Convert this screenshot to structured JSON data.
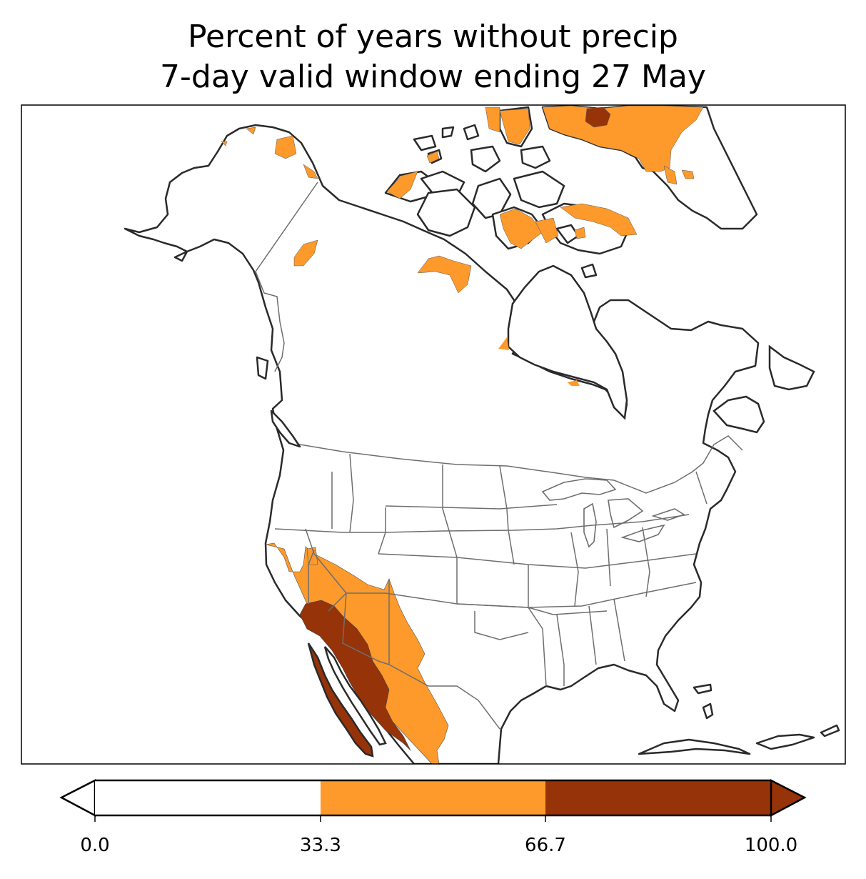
{
  "title": {
    "line1": "Percent of years without precip",
    "line2": "7-day valid window ending 27 May"
  },
  "colorbar": {
    "ticks": [
      "0.0",
      "33.3",
      "66.7",
      "100.0"
    ],
    "bins": [
      {
        "from": 0.0,
        "to": 33.3,
        "color": "#ffffff"
      },
      {
        "from": 33.3,
        "to": 66.7,
        "color": "#fd9a2b"
      },
      {
        "from": 66.7,
        "to": 100.0,
        "color": "#963308"
      }
    ],
    "extend": "both"
  },
  "colors": {
    "coast": "#2a2a2a",
    "borders": "#6e6e6e",
    "low": "#ffffff",
    "mid": "#fd9a2b",
    "high": "#963308"
  }
}
